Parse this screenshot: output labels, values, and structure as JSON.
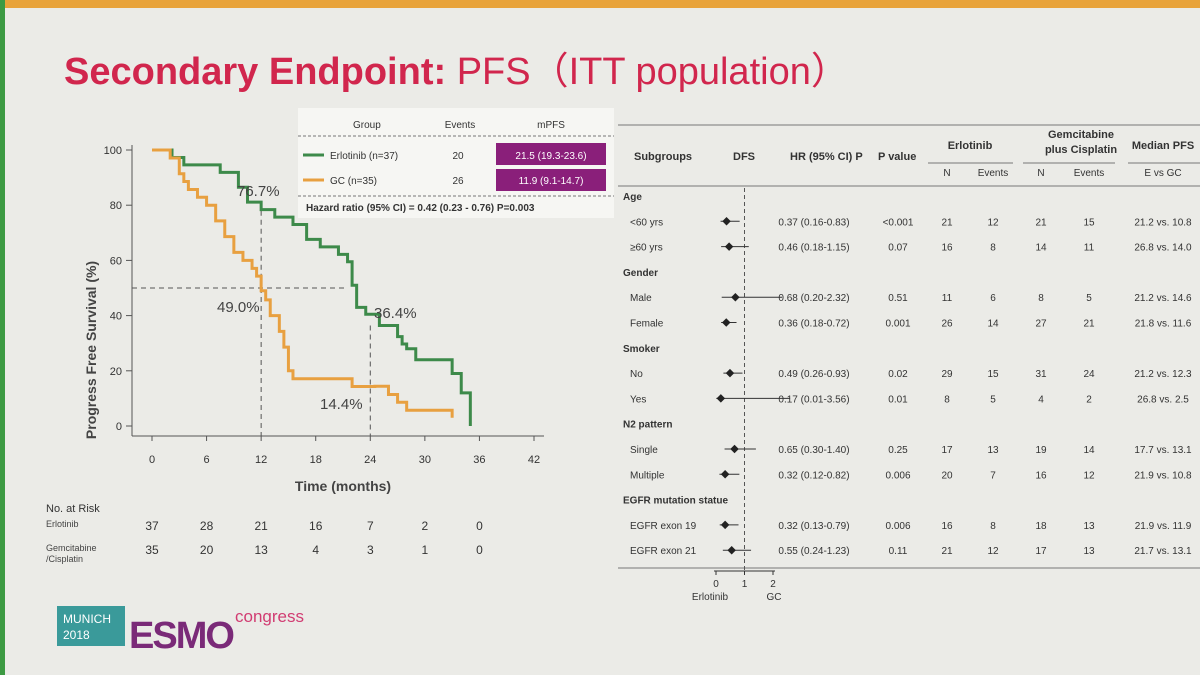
{
  "slide": {
    "title_main": "Secondary Endpoint:",
    "title_rest": "PFS（ITT population）",
    "colors": {
      "title": "#d1264d",
      "erlotinib": "#3d8a4a",
      "gc": "#e8a040",
      "highlight": "#8a1f7a"
    }
  },
  "km_table": {
    "headers": [
      "Group",
      "Events",
      "mPFS"
    ],
    "rows": [
      {
        "group": "Erlotinib (n=37)",
        "events": "20",
        "mpfs": "21.5 (19.3-23.6)"
      },
      {
        "group": "GC (n=35)",
        "events": "26",
        "mpfs": "11.9 (9.1-14.7)"
      }
    ],
    "hazard": "Hazard ratio (95% CI) = 0.42 (0.23 - 0.76) P=0.003"
  },
  "chart_data": [
    {
      "type": "line",
      "title": "",
      "xlabel": "Time (months)",
      "ylabel": "Progress Free Survival (%)",
      "xlim": [
        0,
        42
      ],
      "ylim": [
        0,
        100
      ],
      "xticks": [
        "0",
        "6",
        "12",
        "18",
        "24",
        "30",
        "36",
        "42"
      ],
      "yticks": [
        "0",
        "20",
        "40",
        "60",
        "80",
        "100"
      ],
      "median_line_y": 50,
      "series": [
        {
          "name": "Erlotinib",
          "color": "#3d8a4a",
          "steps": [
            [
              0,
              100
            ],
            [
              2.2,
              97.3
            ],
            [
              3.5,
              94.6
            ],
            [
              7.5,
              91.9
            ],
            [
              9.5,
              86.5
            ],
            [
              10.5,
              81.1
            ],
            [
              12,
              78.4
            ],
            [
              13.5,
              75.7
            ],
            [
              15.5,
              73
            ],
            [
              17,
              67.6
            ],
            [
              18.5,
              64.9
            ],
            [
              20.5,
              62.2
            ],
            [
              21.5,
              59.5
            ],
            [
              22,
              51
            ],
            [
              22.5,
              43
            ],
            [
              23.5,
              40.5
            ],
            [
              25,
              36.4
            ],
            [
              27,
              32.4
            ],
            [
              27.5,
              29.7
            ],
            [
              28,
              28
            ],
            [
              29,
              24
            ],
            [
              32.5,
              24
            ],
            [
              33,
              19
            ],
            [
              34,
              12
            ],
            [
              35,
              6
            ],
            [
              35,
              0
            ]
          ]
        },
        {
          "name": "GC",
          "color": "#e8a040",
          "steps": [
            [
              0,
              100
            ],
            [
              2,
              97.1
            ],
            [
              3,
              91.4
            ],
            [
              3.5,
              88.6
            ],
            [
              4,
              85.7
            ],
            [
              5,
              82.9
            ],
            [
              6,
              80
            ],
            [
              7,
              74.3
            ],
            [
              8,
              68.6
            ],
            [
              9,
              62.9
            ],
            [
              10,
              60
            ],
            [
              11,
              57.1
            ],
            [
              11.5,
              54.3
            ],
            [
              12,
              49
            ],
            [
              12.5,
              45.7
            ],
            [
              13,
              40
            ],
            [
              14,
              34.3
            ],
            [
              14.5,
              28.6
            ],
            [
              15,
              20
            ],
            [
              15.5,
              17.1
            ],
            [
              22,
              14.3
            ],
            [
              24.5,
              14.4
            ],
            [
              26,
              11.4
            ],
            [
              27,
              8.6
            ],
            [
              28,
              5.7
            ],
            [
              33,
              5.7
            ],
            [
              33,
              3
            ]
          ]
        }
      ],
      "annotations": [
        "76.7%",
        "49.0%",
        "36.4%",
        "14.4%"
      ]
    },
    {
      "type": "forest",
      "axis_ticks": [
        "0",
        "1",
        "2"
      ],
      "axis_labels": [
        "Erlotinib",
        "GC"
      ],
      "headers": {
        "subgroups": "Subgroups",
        "dfs": "DFS",
        "hr": "HR (95% CI) P",
        "pvalue": "P value",
        "erlotinib": "Erlotinib",
        "gc": "Gemcitabine plus Cisplatin",
        "median": "Median PFS",
        "n": "N",
        "events": "Events",
        "evsgc": "E vs GC"
      },
      "rows": [
        {
          "label": "Age",
          "type": "header"
        },
        {
          "label": "<60 yrs",
          "hr": 0.37,
          "lo": 0.16,
          "hi": 0.83,
          "hr_text": "0.37 (0.16-0.83)",
          "p": "<0.001",
          "en": "21",
          "ee": "12",
          "gn": "21",
          "ge": "15",
          "med": "21.2 vs. 10.8"
        },
        {
          "label": "≥60 yrs",
          "hr": 0.46,
          "lo": 0.18,
          "hi": 1.15,
          "hr_text": "0.46 (0.18-1.15)",
          "p": "0.07",
          "en": "16",
          "ee": "8",
          "gn": "14",
          "ge": "11",
          "med": "26.8 vs. 14.0"
        },
        {
          "label": "Gender",
          "type": "header"
        },
        {
          "label": "Male",
          "hr": 0.68,
          "lo": 0.2,
          "hi": 2.32,
          "hr_text": "0.68 (0.20-2.32)",
          "p": "0.51",
          "en": "11",
          "ee": "6",
          "gn": "8",
          "ge": "5",
          "med": "21.2 vs. 14.6"
        },
        {
          "label": "Female",
          "hr": 0.36,
          "lo": 0.18,
          "hi": 0.72,
          "hr_text": "0.36 (0.18-0.72)",
          "p": "0.001",
          "en": "26",
          "ee": "14",
          "gn": "27",
          "ge": "21",
          "med": "21.8 vs. 11.6"
        },
        {
          "label": "Smoker",
          "type": "header"
        },
        {
          "label": "No",
          "hr": 0.49,
          "lo": 0.26,
          "hi": 0.93,
          "hr_text": "0.49 (0.26-0.93)",
          "p": "0.02",
          "en": "29",
          "ee": "15",
          "gn": "31",
          "ge": "24",
          "med": "21.2 vs. 12.3"
        },
        {
          "label": "Yes",
          "hr": 0.17,
          "lo": 0.01,
          "hi": 3.56,
          "hr_text": "0.17 (0.01-3.56)",
          "p": "0.01",
          "en": "8",
          "ee": "5",
          "gn": "4",
          "ge": "2",
          "med": "26.8 vs. 2.5"
        },
        {
          "label": "N2 pattern",
          "type": "header"
        },
        {
          "label": "Single",
          "hr": 0.65,
          "lo": 0.3,
          "hi": 1.4,
          "hr_text": "0.65 (0.30-1.40)",
          "p": "0.25",
          "en": "17",
          "ee": "13",
          "gn": "19",
          "ge": "14",
          "med": "17.7 vs. 13.1"
        },
        {
          "label": "Multiple",
          "hr": 0.32,
          "lo": 0.12,
          "hi": 0.82,
          "hr_text": "0.32 (0.12-0.82)",
          "p": "0.006",
          "en": "20",
          "ee": "7",
          "gn": "16",
          "ge": "12",
          "med": "21.9 vs. 10.8"
        },
        {
          "label": "EGFR mutation statue",
          "type": "header"
        },
        {
          "label": "EGFR exon 19",
          "hr": 0.32,
          "lo": 0.13,
          "hi": 0.79,
          "hr_text": "0.32 (0.13-0.79)",
          "p": "0.006",
          "en": "16",
          "ee": "8",
          "gn": "18",
          "ge": "13",
          "med": "21.9 vs. 11.9"
        },
        {
          "label": "EGFR exon 21",
          "hr": 0.55,
          "lo": 0.24,
          "hi": 1.23,
          "hr_text": "0.55 (0.24-1.23)",
          "p": "0.11",
          "en": "21",
          "ee": "12",
          "gn": "17",
          "ge": "13",
          "med": "21.7 vs. 13.1"
        }
      ]
    }
  ],
  "risk_table": {
    "title": "No. at Risk",
    "rows": [
      {
        "label": [
          "Erlotinib"
        ],
        "values": [
          "37",
          "28",
          "21",
          "16",
          "7",
          "2",
          "0"
        ]
      },
      {
        "label": [
          "Gemcitabine",
          "/Cisplatin"
        ],
        "values": [
          "35",
          "20",
          "13",
          "4",
          "3",
          "1",
          "0"
        ]
      }
    ]
  },
  "logo": {
    "city": "MUNICH",
    "year": "2018",
    "brand": "ESMO",
    "suffix": "congress"
  }
}
